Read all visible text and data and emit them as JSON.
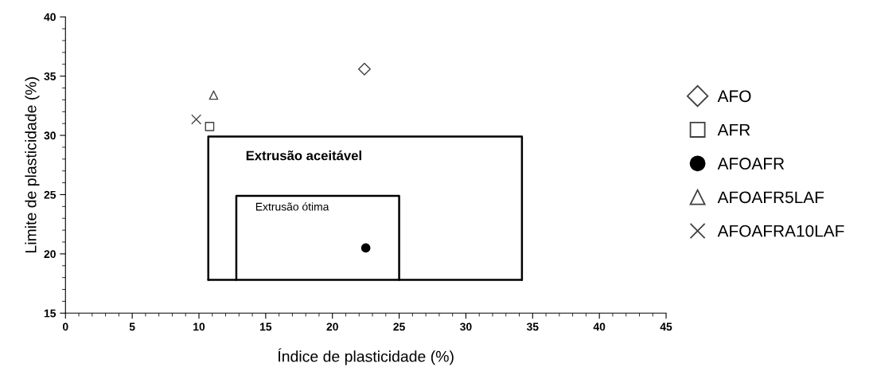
{
  "chart_data": {
    "type": "scatter",
    "xlabel": "Índice de plasticidade (%)",
    "ylabel": "Limite de plasticidade (%)",
    "xlim": [
      0,
      45
    ],
    "ylim": [
      15,
      40
    ],
    "xticks": [
      0,
      5,
      10,
      15,
      20,
      25,
      30,
      35,
      40,
      45
    ],
    "yticks": [
      15,
      20,
      25,
      30,
      35,
      40
    ],
    "grid": false,
    "legend": "right",
    "series": [
      {
        "name": "AFO",
        "color": "#404040",
        "marker": "diamond",
        "x": [
          22.4
        ],
        "values": [
          35.6
        ]
      },
      {
        "name": "AFR",
        "color": "#404040",
        "marker": "square",
        "x": [
          10.8
        ],
        "values": [
          30.75
        ]
      },
      {
        "name": "AFOAFR",
        "color": "#000000",
        "marker": "circle",
        "x": [
          22.5
        ],
        "values": [
          20.5
        ]
      },
      {
        "name": "AFOAFR5LAF",
        "color": "#404040",
        "marker": "triangle",
        "x": [
          11.1
        ],
        "values": [
          33.4
        ]
      },
      {
        "name": "AFOAFRA10LAF",
        "color": "#404040",
        "marker": "cross",
        "x": [
          9.8
        ],
        "values": [
          31.35
        ]
      },
      {
        "type": "line",
        "color": "#000000",
        "marker": "none",
        "x": [
          10.7,
          10.7,
          34.2,
          34.2
        ],
        "values": [
          17.8,
          29.9,
          29.9,
          17.8
        ]
      },
      {
        "type": "line",
        "color": "#000000",
        "marker": "none",
        "x": [
          10.7,
          34.2
        ],
        "values": [
          17.8,
          17.8
        ]
      },
      {
        "type": "line",
        "color": "#000000",
        "marker": "none",
        "x": [
          12.8,
          12.8,
          25.0,
          25.0
        ],
        "values": [
          17.8,
          24.9,
          24.9,
          17.8
        ]
      }
    ],
    "annotations": [
      "Extrusão aceitável",
      "Extrusão ótima"
    ]
  }
}
